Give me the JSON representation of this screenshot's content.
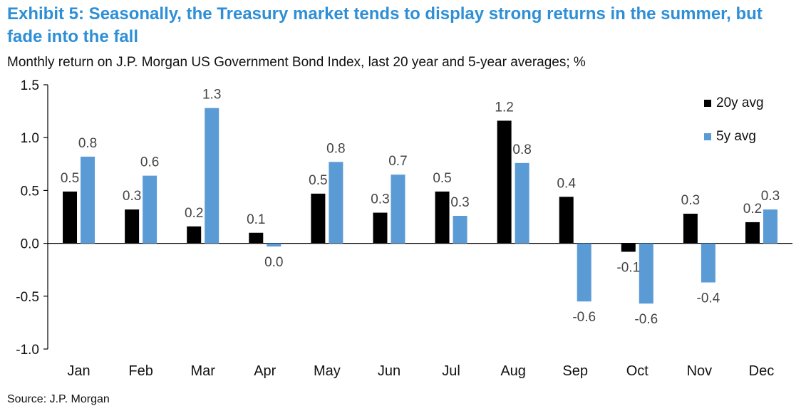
{
  "title": "Exhibit 5: Seasonally, the Treasury market tends to display strong returns in the summer, but fade into the fall",
  "subtitle": "Monthly return on J.P. Morgan US Government Bond Index, last 20 year and 5-year averages; %",
  "source": "Source: J.P. Morgan",
  "chart_data": {
    "type": "bar",
    "categories": [
      "Jan",
      "Feb",
      "Mar",
      "Apr",
      "May",
      "Jun",
      "Jul",
      "Aug",
      "Sep",
      "Oct",
      "Nov",
      "Dec"
    ],
    "series": [
      {
        "name": "20y avg",
        "color": "#000000",
        "values": [
          0.49,
          0.32,
          0.16,
          0.1,
          0.47,
          0.29,
          0.49,
          1.16,
          0.44,
          -0.08,
          0.28,
          0.2
        ],
        "labels": [
          "0.5",
          "0.3",
          "0.2",
          "0.1",
          "0.5",
          "0.3",
          "0.5",
          "1.2",
          "0.4",
          "-0.1",
          "0.3",
          "0.2"
        ]
      },
      {
        "name": "5y avg",
        "color": "#5b9bd5",
        "values": [
          0.82,
          0.64,
          1.28,
          -0.03,
          0.77,
          0.65,
          0.26,
          0.76,
          -0.55,
          -0.57,
          -0.37,
          0.32
        ],
        "labels": [
          "0.8",
          "0.6",
          "1.3",
          "0.0",
          "0.8",
          "0.7",
          "0.3",
          "0.8",
          "-0.6",
          "-0.6",
          "-0.4",
          "0.3"
        ]
      }
    ],
    "ylim": [
      -1.0,
      1.5
    ],
    "yticks": [
      -1.0,
      -0.5,
      0.0,
      0.5,
      1.0,
      1.5
    ],
    "ytick_labels": [
      "-1.0",
      "-0.5",
      "0.0",
      "0.5",
      "1.0",
      "1.5"
    ],
    "xlabel": "",
    "ylabel": "",
    "grid": false,
    "legend_position": "top-right"
  }
}
